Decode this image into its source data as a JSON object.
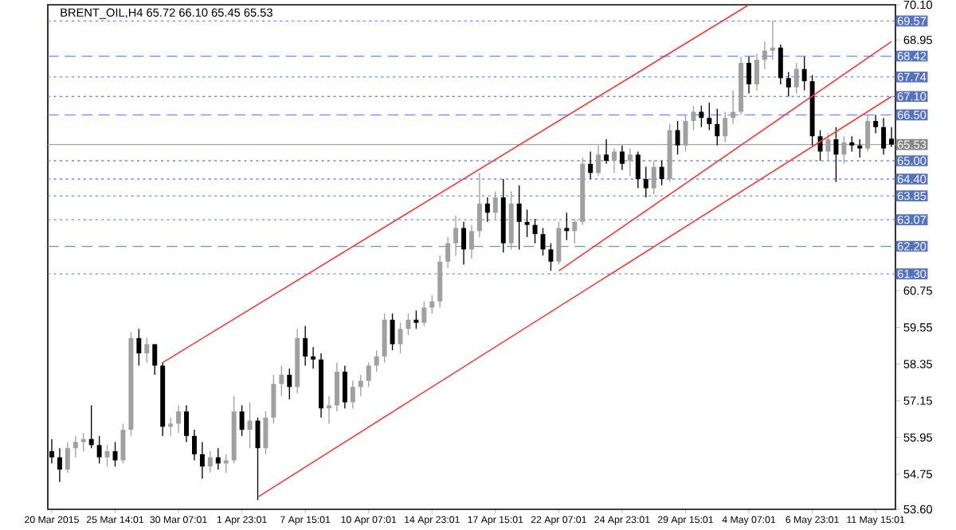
{
  "chart_data": {
    "type": "candlestick",
    "title": "BRENT_OIL,H4  65.72 66.10 65.45 65.53",
    "categories": [
      "20 Mar 2015",
      null,
      null,
      null,
      null,
      null,
      null,
      null,
      "25 Mar 14:01",
      null,
      null,
      null,
      null,
      null,
      null,
      null,
      "30 Mar 07:01",
      null,
      null,
      null,
      null,
      null,
      null,
      null,
      "1 Apr 23:01",
      null,
      null,
      null,
      null,
      null,
      null,
      null,
      "7 Apr 15:01",
      null,
      null,
      null,
      null,
      null,
      null,
      null,
      "10 Apr 07:01",
      null,
      null,
      null,
      null,
      null,
      null,
      null,
      "14 Apr 23:01",
      null,
      null,
      null,
      null,
      null,
      null,
      null,
      "17 Apr 15:01",
      null,
      null,
      null,
      null,
      null,
      null,
      null,
      "22 Apr 07:01",
      null,
      null,
      null,
      null,
      null,
      null,
      null,
      "24 Apr 23:01",
      null,
      null,
      null,
      null,
      null,
      null,
      null,
      "29 Apr 15:01",
      null,
      null,
      null,
      null,
      null,
      null,
      null,
      "4 May 07:01",
      null,
      null,
      null,
      null,
      null,
      null,
      null,
      "6 May 23:01",
      null,
      null,
      null,
      null,
      null,
      null,
      null,
      "11 May 15:01",
      null,
      null
    ],
    "ohlc": [
      [
        55.5,
        55.9,
        55.1,
        55.3
      ],
      [
        55.3,
        55.6,
        54.5,
        54.9
      ],
      [
        54.9,
        55.8,
        54.8,
        55.6
      ],
      [
        55.6,
        56.0,
        55.3,
        55.8
      ],
      [
        55.8,
        56.1,
        55.5,
        55.9
      ],
      [
        55.9,
        57.0,
        55.6,
        55.7
      ],
      [
        55.7,
        56.0,
        55.1,
        55.3
      ],
      [
        55.3,
        55.7,
        55.0,
        55.5
      ],
      [
        55.5,
        55.8,
        55.0,
        55.2
      ],
      [
        55.2,
        56.4,
        55.1,
        56.2
      ],
      [
        56.2,
        59.4,
        56.0,
        59.2
      ],
      [
        59.2,
        59.5,
        58.3,
        58.7
      ],
      [
        58.7,
        59.2,
        58.4,
        59.0
      ],
      [
        59.0,
        59.0,
        58.0,
        58.3
      ],
      [
        58.3,
        58.4,
        56.0,
        56.3
      ],
      [
        56.3,
        56.6,
        56.0,
        56.4
      ],
      [
        56.4,
        57.0,
        56.1,
        56.8
      ],
      [
        56.8,
        57.0,
        55.8,
        56.0
      ],
      [
        56.0,
        56.2,
        55.2,
        55.4
      ],
      [
        55.4,
        55.8,
        54.6,
        55.0
      ],
      [
        55.0,
        55.5,
        54.8,
        55.3
      ],
      [
        55.3,
        55.6,
        54.9,
        55.1
      ],
      [
        55.1,
        55.4,
        54.8,
        55.2
      ],
      [
        55.2,
        57.3,
        55.1,
        56.8
      ],
      [
        56.8,
        57.0,
        56.0,
        56.2
      ],
      [
        56.2,
        57.1,
        55.6,
        56.5
      ],
      [
        56.5,
        56.6,
        53.9,
        55.6
      ],
      [
        55.6,
        56.8,
        55.4,
        56.6
      ],
      [
        56.6,
        58.0,
        56.4,
        57.7
      ],
      [
        57.7,
        58.3,
        57.3,
        58.0
      ],
      [
        58.0,
        58.2,
        57.2,
        57.6
      ],
      [
        57.6,
        59.5,
        57.4,
        59.2
      ],
      [
        59.2,
        59.6,
        58.3,
        58.6
      ],
      [
        58.6,
        58.9,
        58.2,
        58.5
      ],
      [
        58.5,
        58.7,
        56.6,
        56.9
      ],
      [
        56.9,
        57.3,
        56.4,
        57.0
      ],
      [
        57.0,
        58.4,
        56.8,
        58.1
      ],
      [
        58.1,
        58.3,
        56.9,
        57.1
      ],
      [
        57.1,
        57.8,
        56.9,
        57.6
      ],
      [
        57.6,
        58.0,
        57.3,
        57.8
      ],
      [
        57.8,
        58.4,
        57.6,
        58.3
      ],
      [
        58.3,
        58.8,
        58.1,
        58.6
      ],
      [
        58.6,
        60.0,
        58.4,
        59.8
      ],
      [
        59.8,
        60.0,
        58.8,
        59.0
      ],
      [
        59.0,
        59.7,
        58.7,
        59.5
      ],
      [
        59.5,
        60.0,
        59.3,
        59.8
      ],
      [
        59.8,
        60.1,
        59.5,
        59.7
      ],
      [
        59.7,
        60.4,
        59.6,
        60.2
      ],
      [
        60.2,
        60.6,
        60.0,
        60.4
      ],
      [
        60.4,
        61.9,
        60.2,
        61.7
      ],
      [
        61.7,
        62.5,
        61.5,
        62.3
      ],
      [
        62.3,
        63.2,
        61.9,
        62.8
      ],
      [
        62.8,
        63.0,
        61.6,
        62.1
      ],
      [
        62.1,
        62.9,
        61.8,
        62.7
      ],
      [
        62.7,
        64.6,
        62.5,
        63.6
      ],
      [
        63.6,
        63.8,
        63.0,
        63.3
      ],
      [
        63.3,
        64.0,
        63.1,
        63.8
      ],
      [
        63.8,
        64.4,
        62.0,
        62.3
      ],
      [
        62.3,
        64.0,
        62.1,
        63.6
      ],
      [
        63.6,
        64.2,
        62.1,
        63.0
      ],
      [
        63.0,
        63.4,
        62.5,
        62.9
      ],
      [
        62.9,
        63.1,
        62.3,
        62.6
      ],
      [
        62.6,
        62.8,
        61.9,
        62.1
      ],
      [
        62.1,
        62.3,
        61.4,
        61.7
      ],
      [
        61.7,
        63.0,
        61.6,
        62.8
      ],
      [
        62.8,
        63.3,
        62.4,
        62.7
      ],
      [
        62.7,
        63.1,
        62.3,
        63.0
      ],
      [
        63.0,
        65.1,
        62.9,
        64.9
      ],
      [
        64.9,
        65.3,
        64.4,
        64.6
      ],
      [
        64.6,
        65.5,
        64.5,
        65.2
      ],
      [
        65.2,
        65.7,
        64.9,
        65.0
      ],
      [
        65.0,
        65.4,
        64.6,
        65.3
      ],
      [
        65.3,
        65.5,
        64.7,
        64.9
      ],
      [
        65.0,
        65.4,
        64.5,
        65.2
      ],
      [
        65.2,
        65.3,
        64.1,
        64.4
      ],
      [
        64.4,
        64.8,
        63.8,
        64.1
      ],
      [
        64.1,
        65.0,
        63.9,
        64.8
      ],
      [
        64.8,
        65.0,
        64.2,
        64.4
      ],
      [
        64.4,
        66.2,
        64.3,
        66.0
      ],
      [
        66.0,
        66.3,
        65.2,
        65.5
      ],
      [
        65.5,
        66.5,
        65.3,
        66.3
      ],
      [
        66.3,
        66.8,
        66.0,
        66.6
      ],
      [
        66.6,
        66.8,
        66.1,
        66.4
      ],
      [
        66.4,
        66.9,
        66.0,
        66.2
      ],
      [
        66.2,
        66.7,
        65.5,
        65.8
      ],
      [
        65.8,
        66.6,
        65.6,
        66.4
      ],
      [
        66.4,
        67.3,
        66.2,
        66.6
      ],
      [
        66.6,
        68.4,
        66.5,
        68.2
      ],
      [
        68.2,
        68.4,
        67.2,
        67.5
      ],
      [
        67.5,
        68.5,
        67.3,
        68.3
      ],
      [
        68.3,
        68.9,
        68.0,
        68.6
      ],
      [
        68.6,
        69.57,
        68.3,
        68.7
      ],
      [
        68.7,
        68.8,
        67.5,
        67.7
      ],
      [
        67.7,
        67.9,
        67.1,
        67.4
      ],
      [
        67.4,
        68.2,
        67.2,
        68.0
      ],
      [
        68.0,
        68.4,
        67.3,
        67.6
      ],
      [
        67.6,
        67.8,
        65.5,
        65.8
      ],
      [
        65.8,
        66.0,
        65.0,
        65.3
      ],
      [
        65.3,
        65.9,
        65.0,
        65.7
      ],
      [
        65.7,
        66.1,
        64.3,
        65.2
      ],
      [
        65.2,
        65.8,
        64.9,
        65.6
      ],
      [
        65.6,
        65.8,
        65.3,
        65.5
      ],
      [
        65.5,
        65.7,
        65.1,
        65.4
      ],
      [
        65.4,
        66.5,
        65.3,
        66.3
      ],
      [
        66.3,
        66.5,
        65.9,
        66.1
      ],
      [
        66.1,
        66.4,
        65.2,
        65.4
      ],
      [
        65.72,
        66.1,
        65.45,
        65.53
      ]
    ],
    "series": [
      {
        "type": "line",
        "color": "#f03c3c",
        "values": [
          null,
          null,
          null,
          null,
          null,
          null,
          null,
          null,
          null,
          null,
          null,
          null,
          null,
          null,
          58.4,
          null,
          null,
          null,
          null,
          null,
          null,
          null,
          null,
          null,
          null,
          null,
          null,
          null,
          null,
          null,
          null,
          null,
          null,
          null,
          null,
          null,
          null,
          null,
          null,
          null,
          null,
          null,
          null,
          null,
          null,
          null,
          null,
          null,
          null,
          null,
          null,
          null,
          null,
          null,
          null,
          null,
          null,
          null,
          null,
          null,
          null,
          null,
          null,
          null,
          null,
          null,
          null,
          null,
          null,
          null,
          null,
          null,
          null,
          null,
          null,
          null,
          null,
          null,
          null,
          null,
          null,
          null,
          null,
          null,
          null,
          null,
          null,
          null,
          70.1,
          null,
          null,
          null,
          null,
          null,
          null,
          null,
          null,
          null,
          null,
          null,
          null,
          null,
          null,
          null,
          null,
          null,
          null
        ]
      },
      {
        "type": "line",
        "color": "#f03c3c",
        "values": [
          null,
          null,
          null,
          null,
          null,
          null,
          null,
          null,
          null,
          null,
          null,
          null,
          null,
          null,
          null,
          null,
          null,
          null,
          null,
          null,
          null,
          null,
          null,
          null,
          null,
          null,
          54.0,
          null,
          null,
          null,
          null,
          null,
          null,
          null,
          null,
          null,
          null,
          null,
          null,
          null,
          null,
          null,
          null,
          null,
          null,
          null,
          null,
          null,
          null,
          null,
          null,
          null,
          null,
          null,
          null,
          null,
          null,
          null,
          null,
          null,
          null,
          null,
          null,
          null,
          null,
          null,
          null,
          null,
          null,
          null,
          null,
          null,
          null,
          null,
          null,
          null,
          null,
          null,
          null,
          null,
          null,
          null,
          null,
          null,
          null,
          null,
          null,
          null,
          null,
          null,
          null,
          null,
          null,
          null,
          null,
          null,
          null,
          null,
          null,
          null,
          null,
          null,
          null,
          null,
          null,
          null,
          67.1
        ]
      },
      {
        "type": "line",
        "color": "#f03c3c",
        "values": [
          null,
          null,
          null,
          null,
          null,
          null,
          null,
          null,
          null,
          null,
          null,
          null,
          null,
          null,
          null,
          null,
          null,
          null,
          null,
          null,
          null,
          null,
          null,
          null,
          null,
          null,
          null,
          null,
          null,
          null,
          null,
          null,
          null,
          null,
          null,
          null,
          null,
          null,
          null,
          null,
          null,
          null,
          null,
          null,
          null,
          null,
          null,
          null,
          null,
          null,
          null,
          null,
          null,
          null,
          null,
          null,
          null,
          null,
          null,
          null,
          null,
          null,
          null,
          null,
          61.4,
          null,
          null,
          null,
          null,
          null,
          null,
          null,
          null,
          null,
          null,
          null,
          null,
          null,
          null,
          null,
          null,
          null,
          null,
          null,
          null,
          null,
          null,
          null,
          null,
          null,
          null,
          null,
          null,
          null,
          null,
          null,
          null,
          null,
          null,
          null,
          null,
          null,
          null,
          null,
          null,
          null,
          68.9
        ]
      }
    ],
    "ylim": [
      53.6,
      70.1
    ],
    "yticks": [
      {
        "value": 70.1,
        "label": "70.10"
      },
      {
        "value": 68.95,
        "label": "68.95"
      },
      {
        "value": 60.75,
        "label": "60.75"
      },
      {
        "value": 59.55,
        "label": "59.55"
      },
      {
        "value": 58.35,
        "label": "58.35"
      },
      {
        "value": 57.15,
        "label": "57.15"
      },
      {
        "value": 55.95,
        "label": "55.95"
      },
      {
        "value": 54.75,
        "label": "54.75"
      },
      {
        "value": 53.6,
        "label": "53.60"
      }
    ],
    "ref_lines": [
      {
        "axis": "y",
        "value": 69.57,
        "label": "69.57",
        "color": "#6a8ef0",
        "line_style": "dotted"
      },
      {
        "axis": "y",
        "value": 68.42,
        "label": "68.42",
        "color": "#6a8ef0",
        "line_style": "dashed"
      },
      {
        "axis": "y",
        "value": 67.74,
        "label": "67.74",
        "color": "#6a8ef0",
        "line_style": "dotted"
      },
      {
        "axis": "y",
        "value": 67.1,
        "label": "67.10",
        "color": "#6a8ef0",
        "line_style": "dotted"
      },
      {
        "axis": "y",
        "value": 66.5,
        "label": "66.50",
        "color": "#6a8ef0",
        "line_style": "dashed"
      },
      {
        "axis": "y",
        "value": 65.53,
        "label": "65.53",
        "color": "#a8a8a8",
        "line_style": "solid"
      },
      {
        "axis": "y",
        "value": 65.0,
        "label": "65.00",
        "color": "#6a8ef0",
        "line_style": "dotted"
      },
      {
        "axis": "y",
        "value": 64.4,
        "label": "64.40",
        "color": "#6a8ef0",
        "line_style": "dotted"
      },
      {
        "axis": "y",
        "value": 63.85,
        "label": "63.85",
        "color": "#6a8ef0",
        "line_style": "dotted"
      },
      {
        "axis": "y",
        "value": 63.07,
        "label": "63.07",
        "color": "#6a8ef0",
        "line_style": "dotted"
      },
      {
        "axis": "y",
        "value": 62.2,
        "label": "62.20",
        "color": "#6a8ef0",
        "line_style": "dashed"
      },
      {
        "axis": "y",
        "value": 61.3,
        "label": "61.30",
        "color": "#6a8ef0",
        "line_style": "dotted"
      }
    ]
  }
}
